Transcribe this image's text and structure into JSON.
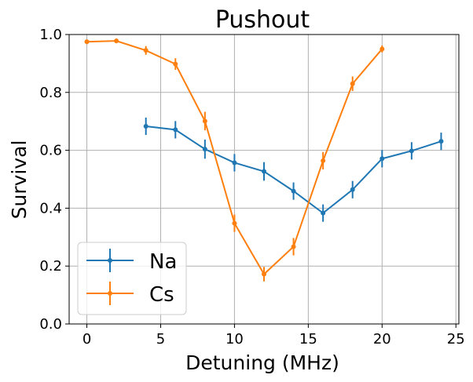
{
  "chart_data": {
    "type": "line",
    "title": "Pushout",
    "xlabel": "Detuning (MHz)",
    "ylabel": "Survival",
    "xlim": [
      -1.2,
      25.2
    ],
    "ylim": [
      0.0,
      1.0
    ],
    "xticks": [
      0,
      5,
      10,
      15,
      20,
      25
    ],
    "yticks": [
      0.0,
      0.2,
      0.4,
      0.6,
      0.8,
      1.0
    ],
    "xtick_labels": [
      "0",
      "5",
      "10",
      "15",
      "20",
      "25"
    ],
    "ytick_labels": [
      "0.0",
      "0.2",
      "0.4",
      "0.6",
      "0.8",
      "1.0"
    ],
    "grid": true,
    "legend_position": "lower-left",
    "series": [
      {
        "name": "Na",
        "color": "#1f77b4",
        "x": [
          4,
          6,
          8,
          10,
          12,
          14,
          16,
          18,
          20,
          22,
          24
        ],
        "y": [
          0.683,
          0.671,
          0.604,
          0.557,
          0.527,
          0.459,
          0.383,
          0.464,
          0.571,
          0.598,
          0.631
        ],
        "err": [
          0.03,
          0.03,
          0.033,
          0.03,
          0.032,
          0.03,
          0.03,
          0.03,
          0.03,
          0.03,
          0.03
        ]
      },
      {
        "name": "Cs",
        "color": "#ff7f0e",
        "x": [
          0,
          2,
          4,
          6,
          8,
          10,
          12,
          14,
          16,
          18,
          20
        ],
        "y": [
          0.975,
          0.978,
          0.945,
          0.898,
          0.701,
          0.348,
          0.172,
          0.267,
          0.564,
          0.83,
          0.95
        ],
        "err": [
          0.008,
          0.008,
          0.015,
          0.02,
          0.032,
          0.03,
          0.025,
          0.03,
          0.03,
          0.025,
          0.012
        ]
      }
    ]
  }
}
